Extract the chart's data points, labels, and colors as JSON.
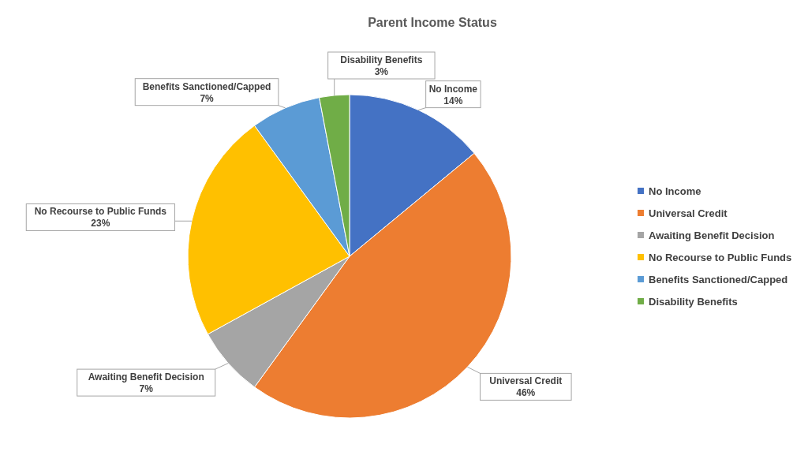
{
  "chart_data": {
    "type": "pie",
    "title": "Parent Income Status",
    "categories": [
      "No Income",
      "Universal Credit",
      "Awaiting Benefit Decision",
      "No Recourse to Public Funds",
      "Benefits Sanctioned/Capped",
      "Disability Benefits"
    ],
    "values": [
      14,
      46,
      7,
      23,
      7,
      3
    ],
    "value_labels": [
      "14%",
      "46%",
      "7%",
      "23%",
      "7%",
      "3%"
    ],
    "colors": [
      "#4472c4",
      "#ed7d31",
      "#a5a5a5",
      "#ffc000",
      "#5b9bd5",
      "#70ad47"
    ],
    "legend": "right"
  }
}
